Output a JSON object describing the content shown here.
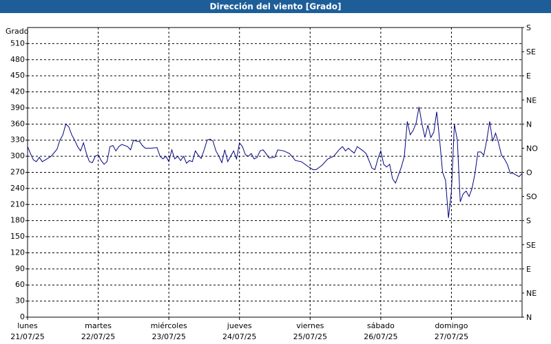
{
  "chart_data": {
    "type": "line",
    "title": "Dirección del viento [Grado]",
    "y_label": "Grado",
    "xlim": [
      0,
      168
    ],
    "xticks": [
      {
        "value": 0,
        "label": "lunes",
        "date": "21/07/25"
      },
      {
        "value": 24,
        "label": "martes",
        "date": "22/07/25"
      },
      {
        "value": 48,
        "label": "miércoles",
        "date": "23/07/25"
      },
      {
        "value": 72,
        "label": "jueves",
        "date": "24/07/25"
      },
      {
        "value": 96,
        "label": "viernes",
        "date": "25/07/25"
      },
      {
        "value": 120,
        "label": "sábado",
        "date": "26/07/25"
      },
      {
        "value": 144,
        "label": "domingo",
        "date": "27/07/25"
      }
    ],
    "ylim": [
      0,
      540
    ],
    "yticks": [
      0,
      30,
      60,
      90,
      120,
      150,
      180,
      210,
      240,
      270,
      300,
      330,
      360,
      390,
      420,
      450,
      480,
      510
    ],
    "y2lim": [
      0,
      540
    ],
    "y2ticks": [
      {
        "value": 0,
        "label": "N"
      },
      {
        "value": 45,
        "label": "NE"
      },
      {
        "value": 90,
        "label": "E"
      },
      {
        "value": 135,
        "label": "SE"
      },
      {
        "value": 180,
        "label": "S"
      },
      {
        "value": 225,
        "label": "SO"
      },
      {
        "value": 270,
        "label": "O"
      },
      {
        "value": 315,
        "label": "NO"
      },
      {
        "value": 360,
        "label": "N"
      },
      {
        "value": 405,
        "label": "NE"
      },
      {
        "value": 450,
        "label": "E"
      },
      {
        "value": 495,
        "label": "SE"
      },
      {
        "value": 540,
        "label": "S"
      }
    ],
    "grid": true,
    "series": [
      {
        "color": "#000080",
        "x": [
          0,
          1,
          2,
          3,
          4,
          5,
          6,
          8,
          10,
          11,
          12,
          13,
          14,
          15,
          16,
          17,
          18,
          19,
          20,
          21,
          22,
          23,
          24,
          25,
          26,
          27,
          28,
          29,
          30,
          31,
          32,
          34,
          35,
          36,
          37,
          38,
          39,
          40,
          42,
          44,
          45,
          46,
          47,
          48,
          49,
          50,
          51,
          52,
          53,
          54,
          55,
          56,
          57,
          58,
          59,
          60,
          61,
          62,
          63,
          64,
          65,
          66,
          67,
          68,
          69,
          70,
          71,
          72,
          73,
          74,
          75,
          76,
          77,
          78,
          79,
          80,
          81,
          82,
          84,
          85,
          87,
          89,
          91,
          93,
          95,
          97,
          98,
          100,
          102,
          104,
          106,
          107,
          108,
          109,
          110,
          111,
          112,
          113,
          114,
          115,
          116,
          117,
          118,
          119,
          120,
          121,
          122,
          123,
          124,
          125,
          126,
          127,
          128,
          129,
          130,
          131,
          132,
          133,
          134,
          135,
          136,
          137,
          138,
          139,
          140,
          141,
          142,
          143,
          144,
          145,
          146,
          147,
          148,
          149,
          150,
          151,
          152,
          153,
          154,
          155,
          156,
          157,
          158,
          159,
          160,
          161,
          162,
          163,
          164,
          165,
          166,
          167,
          168
        ],
        "values": [
          318,
          305,
          293,
          290,
          298,
          290,
          293,
          300,
          313,
          330,
          340,
          360,
          355,
          340,
          330,
          318,
          310,
          325,
          305,
          290,
          288,
          300,
          303,
          292,
          285,
          290,
          318,
          320,
          310,
          318,
          322,
          318,
          312,
          330,
          328,
          328,
          320,
          315,
          315,
          316,
          300,
          295,
          300,
          290,
          312,
          295,
          300,
          292,
          300,
          287,
          292,
          290,
          310,
          302,
          296,
          312,
          330,
          332,
          328,
          310,
          300,
          288,
          312,
          290,
          300,
          310,
          295,
          325,
          318,
          303,
          300,
          305,
          295,
          298,
          310,
          312,
          305,
          297,
          298,
          312,
          310,
          305,
          292,
          290,
          282,
          275,
          275,
          283,
          295,
          300,
          313,
          318,
          310,
          315,
          310,
          306,
          318,
          314,
          310,
          305,
          292,
          278,
          275,
          295,
          310,
          285,
          280,
          285,
          258,
          250,
          265,
          280,
          300,
          365,
          340,
          348,
          362,
          392,
          360,
          335,
          358,
          335,
          345,
          383,
          330,
          270,
          255,
          185,
          235,
          360,
          330,
          215,
          230,
          235,
          225,
          240,
          268,
          308,
          308,
          302,
          330,
          365,
          328,
          343,
          325,
          302,
          295,
          285,
          268,
          268,
          265,
          262,
          268
        ]
      }
    ]
  }
}
